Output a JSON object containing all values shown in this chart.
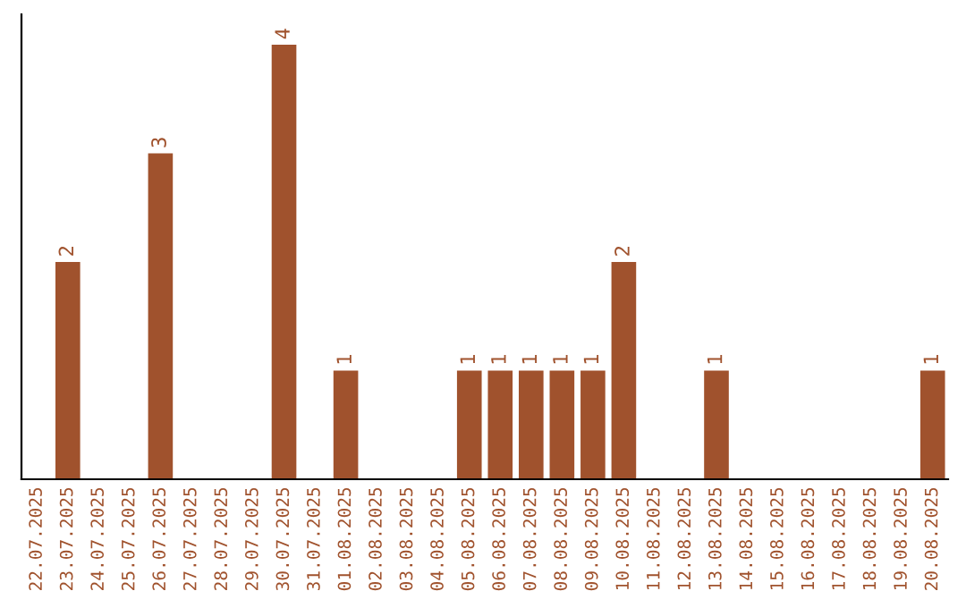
{
  "chart_data": {
    "type": "bar",
    "categories": [
      "22.07.2025",
      "23.07.2025",
      "24.07.2025",
      "25.07.2025",
      "26.07.2025",
      "27.07.2025",
      "28.07.2025",
      "29.07.2025",
      "30.07.2025",
      "31.07.2025",
      "01.08.2025",
      "02.08.2025",
      "03.08.2025",
      "04.08.2025",
      "05.08.2025",
      "06.08.2025",
      "07.08.2025",
      "08.08.2025",
      "09.08.2025",
      "10.08.2025",
      "11.08.2025",
      "12.08.2025",
      "13.08.2025",
      "14.08.2025",
      "15.08.2025",
      "16.08.2025",
      "17.08.2025",
      "18.08.2025",
      "19.08.2025",
      "20.08.2025"
    ],
    "values": [
      0,
      2,
      0,
      0,
      3,
      0,
      0,
      0,
      4,
      0,
      1,
      0,
      0,
      0,
      1,
      1,
      1,
      1,
      1,
      2,
      0,
      0,
      1,
      0,
      0,
      0,
      0,
      0,
      0,
      1
    ],
    "value_labels": [
      null,
      "2",
      null,
      null,
      "3",
      null,
      null,
      null,
      "4",
      null,
      "1",
      null,
      null,
      null,
      "1",
      "1",
      "1",
      "1",
      "1",
      "2",
      null,
      null,
      "1",
      null,
      null,
      null,
      null,
      null,
      null,
      "1"
    ],
    "color": "#a0522d",
    "grid": false,
    "legend": false
  }
}
